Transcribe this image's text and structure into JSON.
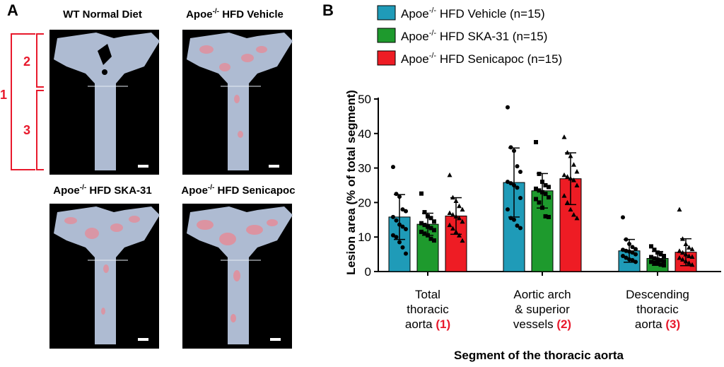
{
  "panel_a": {
    "label": "A",
    "images": [
      {
        "title": "WT Normal Diet"
      },
      {
        "title_main": "Apoe",
        "title_sup": "-/-",
        "title_rest": " HFD Vehicle"
      },
      {
        "title_main": "Apoe",
        "title_sup": "-/-",
        "title_rest": " HFD SKA-31"
      },
      {
        "title_main": "Apoe",
        "title_sup": "-/-",
        "title_rest": " HFD Senicapoc"
      }
    ],
    "segments": {
      "whole": "1",
      "arch": "2",
      "descending": "3"
    },
    "colors": {
      "bracket": "#e8192c",
      "background": "#000000",
      "tissue": "#aebbd2",
      "lesion": "#e88a96"
    }
  },
  "panel_b": {
    "label": "B",
    "legend": [
      {
        "main": "Apoe",
        "sup": "-/-",
        "rest": " HFD Vehicle (n=15)",
        "color": "#1f9bb8"
      },
      {
        "main": "Apoe",
        "sup": "-/-",
        "rest": " HFD SKA-31 (n=15)",
        "color": "#1e9a2d"
      },
      {
        "main": "Apoe",
        "sup": "-/-",
        "rest": " HFD Senicapoc (n=15)",
        "color": "#ee1c24"
      }
    ],
    "category_labels": [
      {
        "lines": [
          "Total",
          "thoracic",
          "aorta"
        ],
        "suffix": "(1)"
      },
      {
        "lines": [
          "Aortic arch",
          "& superior",
          "vessels"
        ],
        "suffix": "(2)"
      },
      {
        "lines": [
          "Descending",
          "thoracic",
          "aorta"
        ],
        "suffix": "(3)"
      }
    ],
    "suffix_color": "#e8192c"
  },
  "chart_data": {
    "type": "bar",
    "xlabel": "Segment of the thoracic aorta",
    "ylabel": "Lesion area (% of total segment)",
    "ylim": [
      0,
      50
    ],
    "yticks": [
      0,
      10,
      20,
      30,
      40,
      50
    ],
    "categories": [
      "Total thoracic aorta (1)",
      "Aortic arch & superior vessels (2)",
      "Descending thoracic aorta (3)"
    ],
    "grid": false,
    "legend_position": "top",
    "series": [
      {
        "name": "Apoe-/- HFD Vehicle (n=15)",
        "color": "#1f9bb8",
        "marker": "circle",
        "values": [
          15.8,
          25.8,
          6.0
        ],
        "sd": [
          6.5,
          10.0,
          3.3
        ],
        "points": [
          [
            30.3,
            22.5,
            21.7,
            18.0,
            17.5,
            15.8,
            14.8,
            13.6,
            13.0,
            12.3,
            10.5,
            10.0,
            8.5,
            7.0,
            5.2
          ],
          [
            47.6,
            36.0,
            35.0,
            30.5,
            28.9,
            26.0,
            25.6,
            25.0,
            24.3,
            21.3,
            18.0,
            15.5,
            15.0,
            13.3,
            12.6
          ],
          [
            15.7,
            9.3,
            8.0,
            7.1,
            6.5,
            6.3,
            6.0,
            5.8,
            5.5,
            5.0,
            4.5,
            4.0,
            3.5,
            3.3,
            2.8
          ]
        ]
      },
      {
        "name": "Apoe-/- HFD SKA-31 (n=15)",
        "color": "#1e9a2d",
        "marker": "square",
        "values": [
          13.7,
          23.4,
          3.8
        ],
        "sd": [
          3.2,
          5.0,
          2.0
        ],
        "points": [
          [
            22.6,
            17.2,
            16.0,
            15.5,
            14.5,
            14.0,
            13.5,
            13.0,
            12.6,
            12.0,
            11.5,
            11.0,
            10.5,
            9.5,
            9.0
          ],
          [
            37.5,
            28.3,
            26.0,
            25.0,
            24.5,
            24.0,
            23.5,
            23.0,
            22.5,
            21.5,
            21.0,
            20.0,
            18.5,
            16.0,
            15.8
          ],
          [
            7.3,
            6.3,
            5.5,
            5.0,
            4.5,
            4.2,
            3.8,
            3.5,
            3.3,
            3.0,
            2.8,
            2.5,
            2.3,
            2.0,
            1.8
          ]
        ]
      },
      {
        "name": "Apoe-/- HFD Senicapoc (n=15)",
        "color": "#ee1c24",
        "marker": "triangle",
        "values": [
          16.1,
          26.9,
          5.6
        ],
        "sd": [
          5.3,
          7.5,
          3.9
        ],
        "points": [
          [
            28.0,
            21.5,
            20.5,
            19.0,
            18.0,
            17.0,
            16.5,
            16.0,
            15.5,
            14.5,
            13.5,
            12.5,
            11.5,
            10.5,
            9.0
          ],
          [
            39.0,
            34.5,
            33.5,
            31.0,
            29.0,
            28.0,
            27.5,
            27.0,
            26.5,
            25.0,
            22.0,
            20.0,
            18.0,
            16.5,
            15.5
          ],
          [
            18.0,
            9.5,
            8.0,
            7.0,
            6.5,
            6.0,
            5.5,
            5.0,
            4.5,
            4.3,
            4.0,
            3.5,
            3.0,
            2.5,
            2.0
          ]
        ]
      }
    ]
  }
}
